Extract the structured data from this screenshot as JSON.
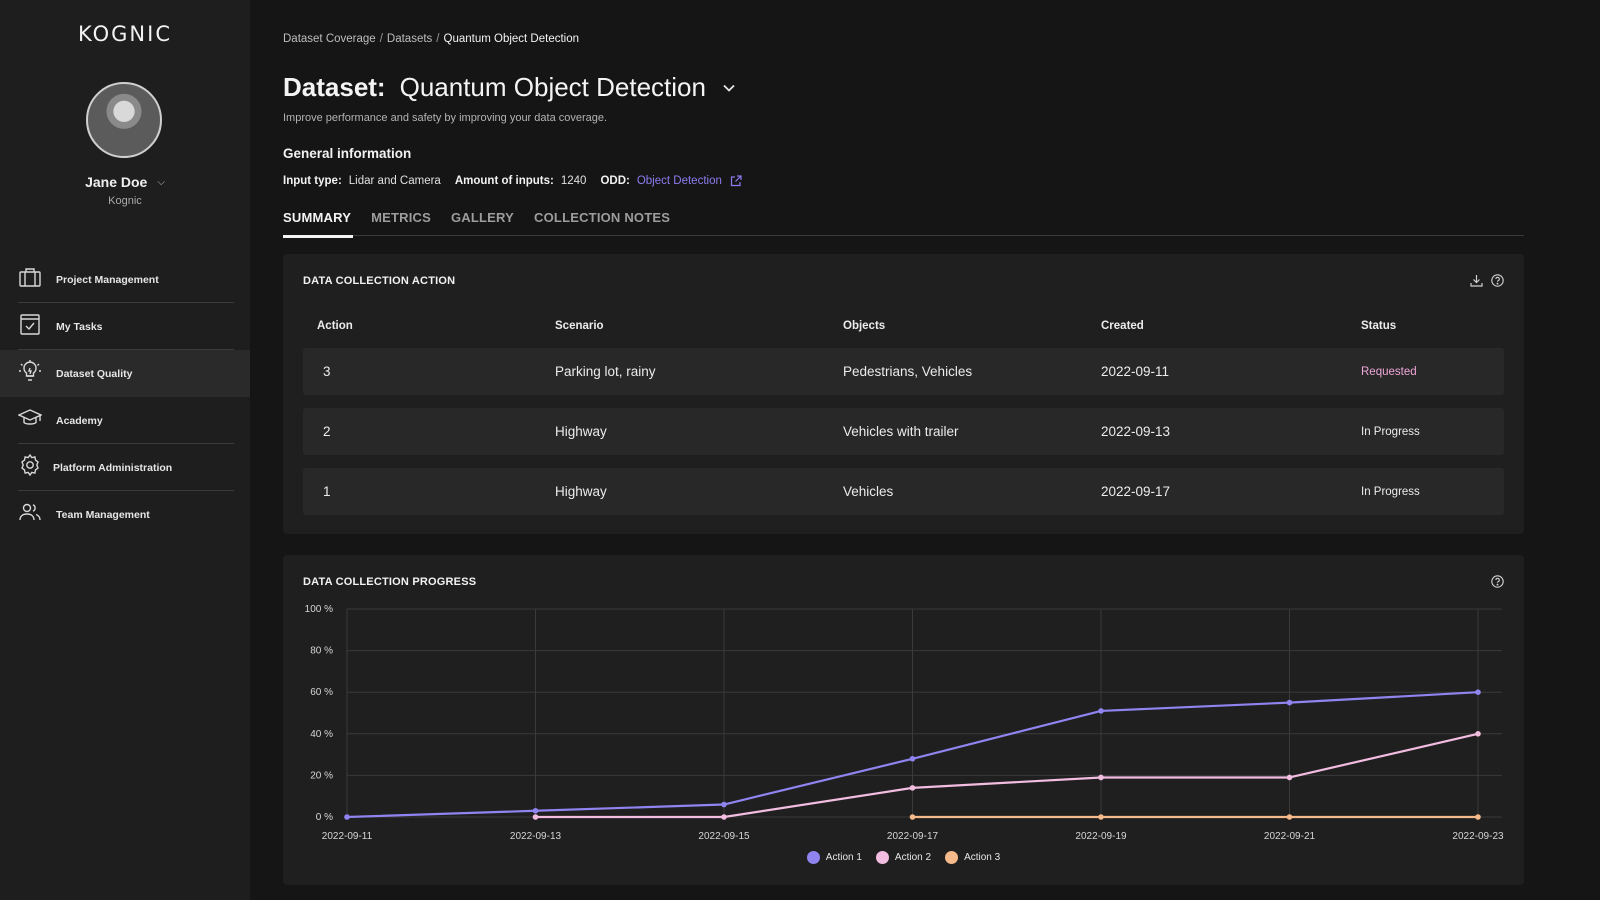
{
  "app": {
    "logo_text": "KOGNIC"
  },
  "user": {
    "name": "Jane Doe",
    "org": "Kognic"
  },
  "sidebar": {
    "items": [
      {
        "label": "Project Management",
        "icon": "briefcase-icon"
      },
      {
        "label": "My Tasks",
        "icon": "task-checkbox-icon"
      },
      {
        "label": "Dataset Quality",
        "icon": "lightbulb-icon"
      },
      {
        "label": "Academy",
        "icon": "graduation-cap-icon"
      },
      {
        "label": "Platform Administration",
        "icon": "gear-icon"
      },
      {
        "label": "Team Management",
        "icon": "users-icon"
      }
    ],
    "active_index": 2
  },
  "breadcrumb": {
    "items": [
      "Dataset Coverage",
      "Datasets"
    ],
    "current": "Quantum Object Detection"
  },
  "header": {
    "title_prefix": "Dataset:",
    "title_name": "Quantum Object Detection",
    "subtitle": "Improve performance and safety by improving your data coverage."
  },
  "general_info": {
    "title": "General information",
    "input_type_label": "Input type:",
    "input_type_value": "Lidar and Camera",
    "amount_label": "Amount of inputs:",
    "amount_value": "1240",
    "odd_label": "ODD:",
    "odd_value": "Object Detection"
  },
  "tabs": [
    {
      "label": "SUMMARY",
      "active": true
    },
    {
      "label": "METRICS",
      "active": false
    },
    {
      "label": "GALLERY",
      "active": false
    },
    {
      "label": "COLLECTION NOTES",
      "active": false
    }
  ],
  "actions_card": {
    "title": "DATA COLLECTION ACTION",
    "columns": [
      "Action",
      "Scenario",
      "Objects",
      "Created",
      "Status"
    ],
    "rows": [
      {
        "action": "3",
        "scenario": "Parking lot, rainy",
        "objects": "Pedestrians, Vehicles",
        "created": "2022-09-11",
        "status": "Requested"
      },
      {
        "action": "2",
        "scenario": "Highway",
        "objects": "Vehicles with trailer",
        "created": "2022-09-13",
        "status": "In Progress"
      },
      {
        "action": "1",
        "scenario": "Highway",
        "objects": "Vehicles",
        "created": "2022-09-17",
        "status": "In Progress"
      }
    ]
  },
  "progress_card": {
    "title": "DATA COLLECTION PROGRESS"
  },
  "colors": {
    "action1": "#8f84f0",
    "action2": "#f2bde0",
    "action3": "#f5b98a",
    "link": "#8c7cf0",
    "requested": "#f0a7d8"
  },
  "chart_data": {
    "type": "line",
    "x": [
      "2022-09-11",
      "2022-09-13",
      "2022-09-15",
      "2022-09-17",
      "2022-09-19",
      "2022-09-21",
      "2022-09-23"
    ],
    "ylim": [
      0,
      100
    ],
    "yticks": [
      "0 %",
      "20 %",
      "40 %",
      "60 %",
      "80 %",
      "100 %"
    ],
    "grid": true,
    "legend_position": "bottom-center",
    "series": [
      {
        "name": "Action 1",
        "values": [
          0,
          3,
          6,
          28,
          51,
          55,
          60
        ]
      },
      {
        "name": "Action 2",
        "values": [
          null,
          0,
          0,
          14,
          19,
          19,
          40
        ]
      },
      {
        "name": "Action 3",
        "values": [
          null,
          null,
          null,
          0,
          0,
          0,
          0
        ]
      }
    ]
  }
}
